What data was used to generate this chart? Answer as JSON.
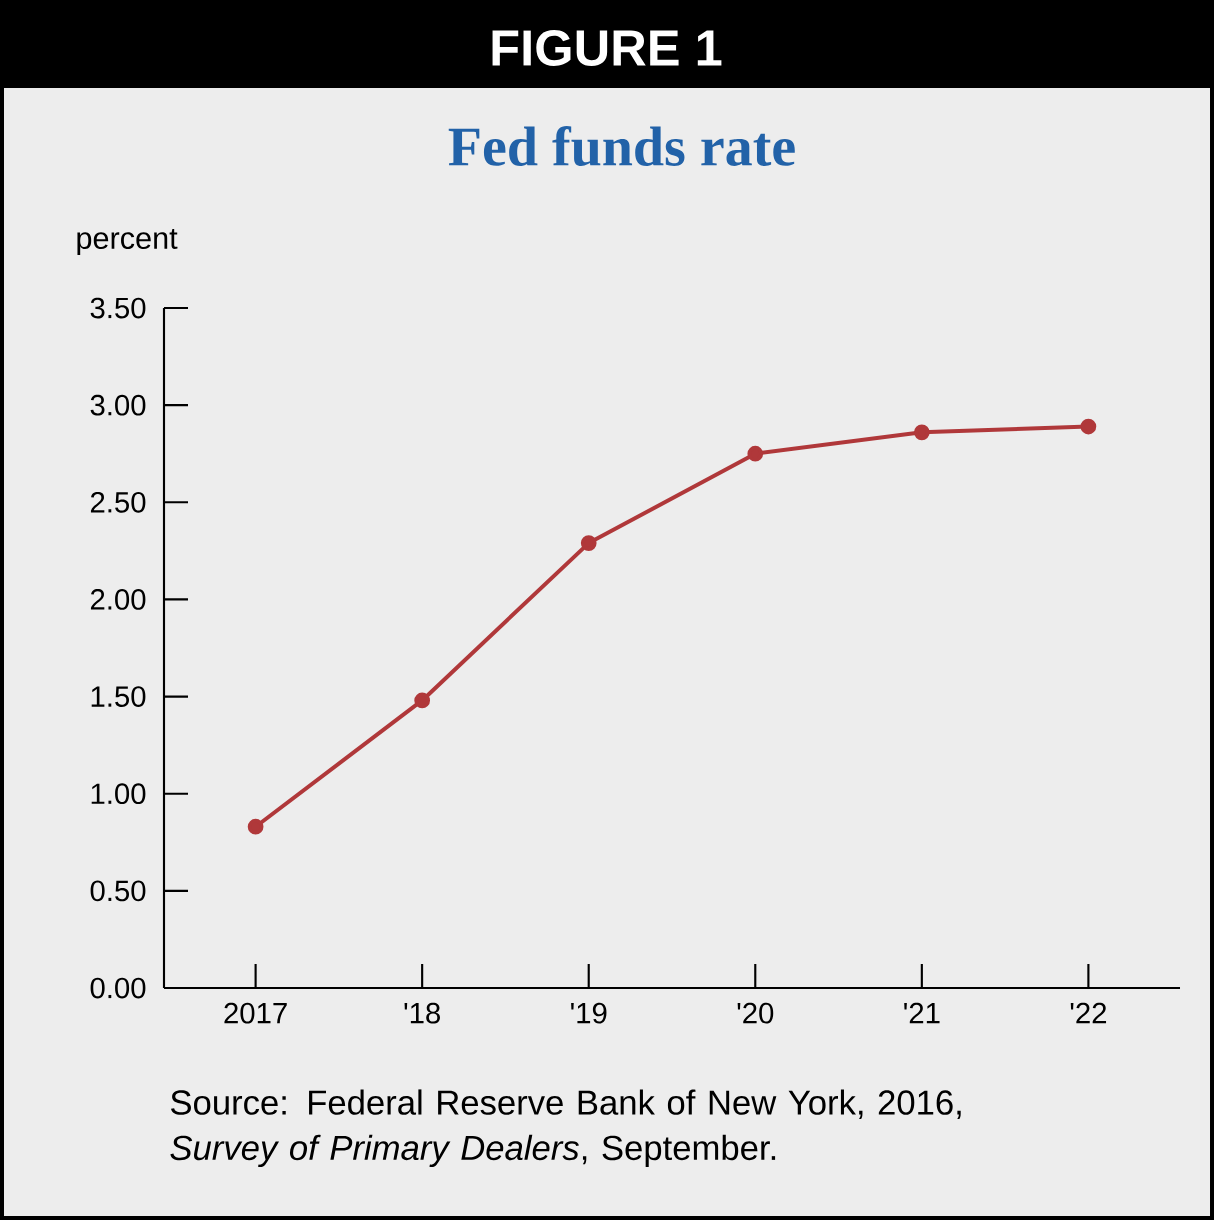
{
  "chart_data": {
    "type": "line",
    "title": "FIGURE 1",
    "subtitle": "Fed funds rate",
    "ylabel": "percent",
    "categories": [
      "2017",
      "'18",
      "'19",
      "'20",
      "'21",
      "'22"
    ],
    "series": [
      {
        "color": "#b0383a",
        "values": [
          0.83,
          1.48,
          2.29,
          2.75,
          2.86,
          2.89
        ]
      }
    ],
    "ylim": [
      0,
      3.5
    ],
    "yticks": [
      {
        "value": 0,
        "label": "0.00"
      },
      {
        "value": 0.5,
        "label": "0.50"
      },
      {
        "value": 1,
        "label": "1.00"
      },
      {
        "value": 1.5,
        "label": "1.50"
      },
      {
        "value": 2,
        "label": "2.00"
      },
      {
        "value": 2.5,
        "label": "2.50"
      },
      {
        "value": 3,
        "label": "3.00"
      },
      {
        "value": 3.5,
        "label": "3.50"
      }
    ],
    "marker": "circle",
    "line_style": "solid",
    "annotations": [
      "Source: Federal Reserve Bank of New York, 2016, *Survey of Primary Dealers*, September."
    ]
  }
}
